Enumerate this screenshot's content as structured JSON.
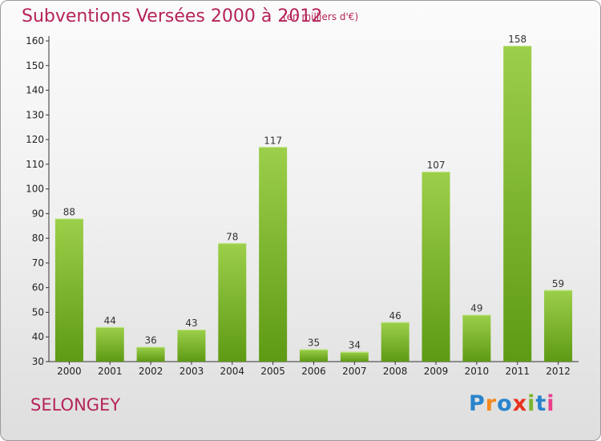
{
  "header": {
    "title": "Subventions Versées 2000 à 2012",
    "subtitle": "(en milliers d'€)"
  },
  "footer": {
    "commune": "SELONGEY",
    "logo_text": "Proxiti"
  },
  "colors": {
    "title": "#b5235a",
    "bar_light": "#9ccf4a",
    "bar_dark": "#5e9a14",
    "logo_letters": [
      "#2a84cc",
      "#f28a1e",
      "#2a84cc",
      "#e8321e",
      "#7ab52c",
      "#2a84cc",
      "#e83e8c"
    ]
  },
  "chart_data": {
    "type": "bar",
    "categories": [
      "2000",
      "2001",
      "2002",
      "2003",
      "2004",
      "2005",
      "2006",
      "2007",
      "2008",
      "2009",
      "2010",
      "2011",
      "2012"
    ],
    "values": [
      88,
      44,
      36,
      43,
      78,
      117,
      35,
      34,
      46,
      107,
      49,
      158,
      59
    ],
    "title": "Subventions Versées 2000 à 2012",
    "subtitle": "(en milliers d'€)",
    "ylim": [
      30,
      160
    ],
    "yticks": [
      30,
      40,
      50,
      60,
      70,
      80,
      90,
      100,
      110,
      120,
      130,
      140,
      150,
      160
    ],
    "grid": false,
    "legend": "none"
  }
}
